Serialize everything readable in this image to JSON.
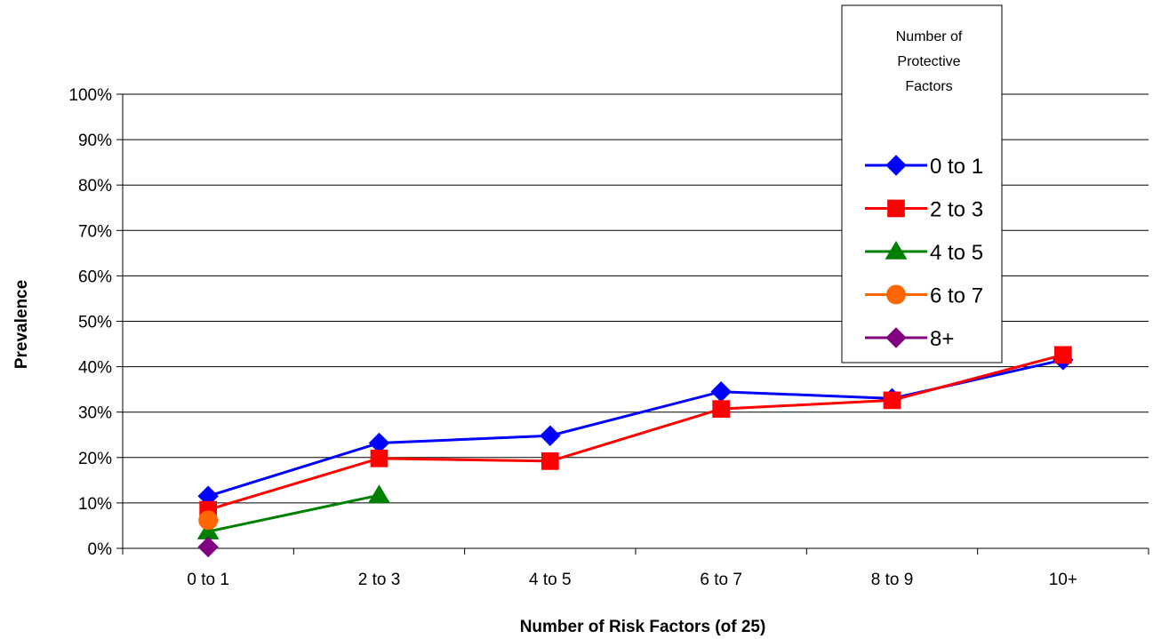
{
  "chart_data": {
    "type": "line",
    "xlabel": "Number of Risk Factors (of 25)",
    "ylabel": "Prevalence",
    "categories": [
      "0 to 1",
      "2 to 3",
      "4 to 5",
      "6 to 7",
      "8 to 9",
      "10+"
    ],
    "ylim": [
      0,
      100
    ],
    "yticks": [
      "0%",
      "10%",
      "20%",
      "30%",
      "40%",
      "50%",
      "60%",
      "70%",
      "80%",
      "90%",
      "100%"
    ],
    "grid": "horizontal",
    "legend_title": "Number of Protective Factors",
    "legend_position": "top-right",
    "series": [
      {
        "name": "0 to 1",
        "color": "#0000ff",
        "marker": "diamond",
        "values": [
          11.5,
          23.2,
          24.8,
          34.5,
          33.0,
          41.5
        ]
      },
      {
        "name": "2 to 3",
        "color": "#ff0000",
        "marker": "square",
        "values": [
          8.5,
          19.8,
          19.2,
          30.7,
          32.6,
          42.6
        ]
      },
      {
        "name": "4 to 5",
        "color": "#008000",
        "marker": "triangle",
        "values": [
          3.7,
          11.7,
          null,
          null,
          null,
          null
        ]
      },
      {
        "name": "6 to 7",
        "color": "#ff6600",
        "marker": "circle",
        "values": [
          6.2,
          null,
          null,
          null,
          null,
          null
        ]
      },
      {
        "name": "8+",
        "color": "#800080",
        "marker": "diamond",
        "values": [
          0.3,
          null,
          null,
          null,
          null,
          null
        ]
      }
    ]
  }
}
